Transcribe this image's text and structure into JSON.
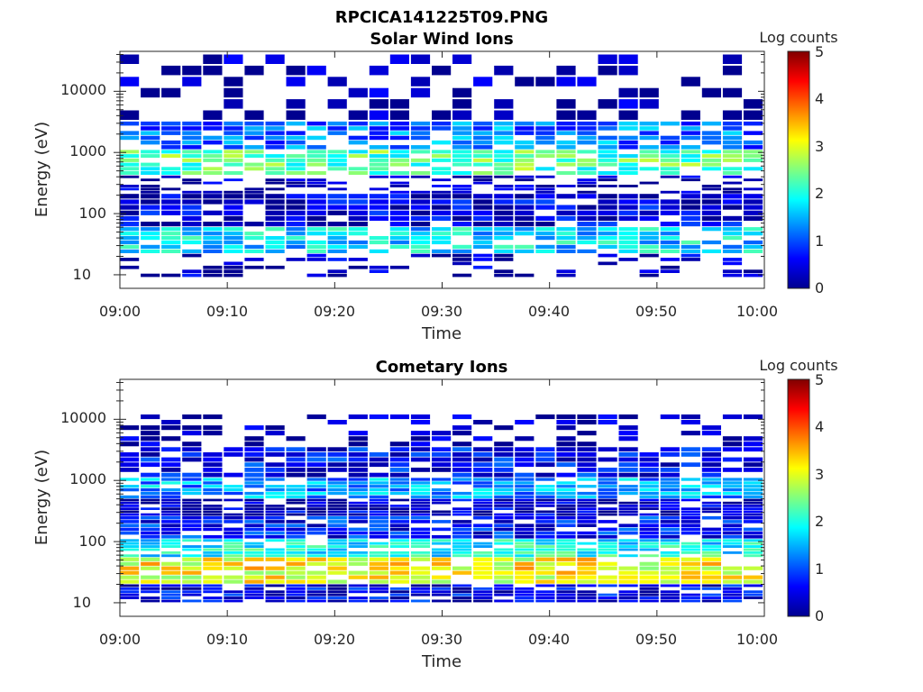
{
  "figure": {
    "title": "RPCICA141225T09.PNG"
  },
  "colorbar": {
    "label": "Log counts",
    "ticks": [
      "0",
      "1",
      "2",
      "3",
      "4",
      "5"
    ],
    "range": [
      0,
      5
    ],
    "colormap": "jet"
  },
  "chart_data": [
    {
      "type": "heatmap",
      "title": "Solar Wind Ions",
      "xlabel": "Time",
      "ylabel": "Energy (eV)",
      "x_ticks": [
        "09:00",
        "09:10",
        "09:20",
        "09:30",
        "09:40",
        "09:50",
        "10:00"
      ],
      "y_ticks": [
        "10",
        "100",
        "1000",
        "10000"
      ],
      "y_scale": "log",
      "ylim": [
        6,
        45000
      ],
      "xlim_minutes": [
        0,
        60
      ],
      "bands": [
        {
          "e_min": 9,
          "e_max": 22,
          "level": 0.2
        },
        {
          "e_min": 22,
          "e_max": 60,
          "level": 1.7
        },
        {
          "e_min": 60,
          "e_max": 210,
          "level": 0.4
        },
        {
          "e_min": 210,
          "e_max": 420,
          "level": 0.15
        },
        {
          "e_min": 420,
          "e_max": 1100,
          "level": 2.3
        },
        {
          "e_min": 1100,
          "e_max": 3200,
          "level": 1.2
        },
        {
          "e_min": 3200,
          "e_max": 40000,
          "level": 0.1
        }
      ]
    },
    {
      "type": "heatmap",
      "title": "Cometary Ions",
      "xlabel": "Time",
      "ylabel": "Energy (eV)",
      "x_ticks": [
        "09:00",
        "09:10",
        "09:20",
        "09:30",
        "09:40",
        "09:50",
        "10:00"
      ],
      "y_ticks": [
        "10",
        "100",
        "1000",
        "10000"
      ],
      "y_scale": "log",
      "ylim": [
        6,
        45000
      ],
      "xlim_minutes": [
        0,
        60
      ],
      "bands": [
        {
          "e_min": 10,
          "e_max": 20,
          "level": 0.5
        },
        {
          "e_min": 20,
          "e_max": 55,
          "level": 3.1
        },
        {
          "e_min": 55,
          "e_max": 110,
          "level": 1.9
        },
        {
          "e_min": 110,
          "e_max": 260,
          "level": 0.7
        },
        {
          "e_min": 260,
          "e_max": 500,
          "level": 0.3
        },
        {
          "e_min": 500,
          "e_max": 1100,
          "level": 1.4
        },
        {
          "e_min": 1100,
          "e_max": 3500,
          "level": 0.6
        },
        {
          "e_min": 3500,
          "e_max": 12000,
          "level": 0.1
        }
      ]
    }
  ]
}
